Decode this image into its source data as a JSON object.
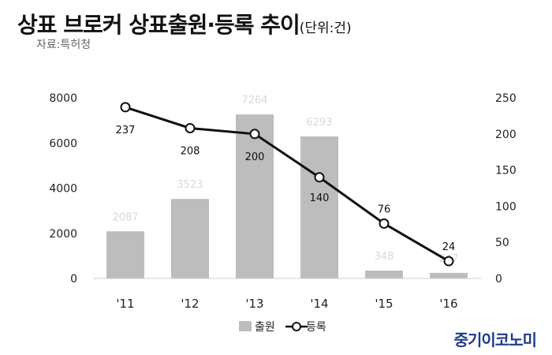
{
  "header": {
    "title": "상표 브로커 상표출원·등록 추이",
    "unit": "(단위:건)",
    "source": "자료:특허청"
  },
  "brand": "중기이코노미",
  "colors": {
    "bar": "#bdbdbd",
    "line": "#111111",
    "bar_label": "#d9d9d9"
  },
  "chart_data": {
    "type": "bar",
    "categories": [
      "'11",
      "'12",
      "'13",
      "'14",
      "'15",
      "'16"
    ],
    "series": [
      {
        "name": "출원",
        "type": "bar",
        "axis": "left",
        "values": [
          2087,
          3523,
          7264,
          6293,
          348,
          247
        ]
      },
      {
        "name": "등록",
        "type": "line",
        "axis": "right",
        "values": [
          237,
          208,
          200,
          140,
          76,
          24
        ]
      }
    ],
    "y_left": {
      "min": 0,
      "max": 8000,
      "ticks": [
        0,
        2000,
        4000,
        6000,
        8000
      ]
    },
    "y_right": {
      "min": 0,
      "max": 250,
      "ticks": [
        0,
        50,
        100,
        150,
        200,
        250
      ]
    },
    "grid": false,
    "legend": "bottom"
  }
}
